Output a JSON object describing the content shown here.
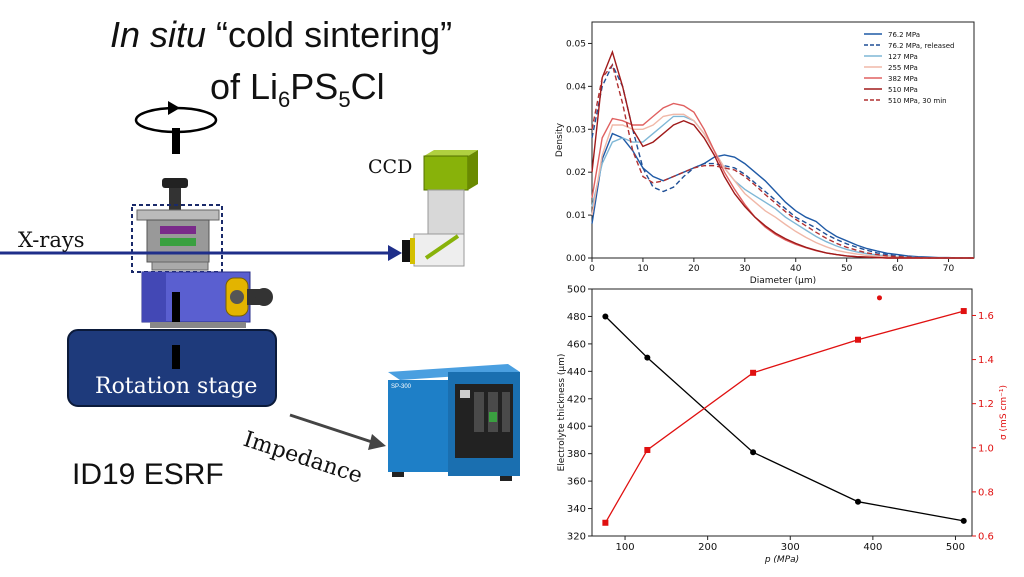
{
  "title": {
    "line1_italic": "In situ",
    "line1_rest": " “cold sintering”",
    "line2_prefix": "of Li",
    "line2_sub1": "6",
    "line2_mid": "PS",
    "line2_sub2": "5",
    "line2_suffix": "Cl"
  },
  "labels": {
    "xrays": "X-rays",
    "ccd": "CCD",
    "rotation_stage": "Rotation stage",
    "impedance": "Impedance",
    "facility": "ID19 ESRF",
    "device_brand": "SP-300"
  },
  "colors": {
    "beam": "#1f2f8a",
    "stage": "#1e3a7b",
    "ccd": "#88b20a",
    "cell": "#5a5fd0",
    "potentiostat": "#1e7fc7"
  },
  "chart_data": [
    {
      "type": "line",
      "ylabel": "Density",
      "xlabel": "Diameter (μm)",
      "xlim": [
        0,
        75
      ],
      "ylim": [
        0,
        0.055
      ],
      "xticks": [
        0,
        10,
        20,
        30,
        40,
        50,
        60,
        70
      ],
      "yticks": [
        0.0,
        0.01,
        0.02,
        0.03,
        0.04,
        0.05
      ],
      "legend_position": "top-right",
      "series": [
        {
          "name": "76.2 MPa",
          "color": "#1f5aa6",
          "dash": false,
          "x": [
            0,
            2,
            4,
            6,
            8,
            10,
            12,
            14,
            16,
            18,
            20,
            22,
            24,
            26,
            28,
            30,
            32,
            34,
            36,
            38,
            40,
            42,
            44,
            46,
            48,
            50,
            52,
            54,
            56,
            58,
            60,
            62,
            64,
            66,
            68,
            70,
            72,
            75
          ],
          "y": [
            0.008,
            0.023,
            0.029,
            0.028,
            0.025,
            0.021,
            0.019,
            0.018,
            0.019,
            0.02,
            0.021,
            0.022,
            0.0235,
            0.024,
            0.0235,
            0.022,
            0.02,
            0.018,
            0.0155,
            0.013,
            0.011,
            0.0095,
            0.0085,
            0.0065,
            0.005,
            0.004,
            0.003,
            0.0022,
            0.0016,
            0.0011,
            0.0008,
            0.0005,
            0.0003,
            0.0002,
            0.0001,
            0.0001,
            0.0,
            0.0
          ]
        },
        {
          "name": "76.2 MPa, released",
          "color": "#1f4f96",
          "dash": true,
          "x": [
            0,
            2,
            4,
            6,
            8,
            10,
            12,
            14,
            16,
            18,
            20,
            22,
            24,
            26,
            28,
            30,
            32,
            34,
            36,
            38,
            40,
            42,
            44,
            46,
            48,
            50,
            52,
            54,
            56,
            58,
            60,
            62,
            64,
            66,
            68,
            70,
            72,
            75
          ],
          "y": [
            0.028,
            0.04,
            0.045,
            0.04,
            0.03,
            0.021,
            0.0165,
            0.0155,
            0.0165,
            0.019,
            0.021,
            0.022,
            0.022,
            0.0215,
            0.021,
            0.0195,
            0.0175,
            0.0155,
            0.0135,
            0.0115,
            0.0095,
            0.0082,
            0.007,
            0.0055,
            0.0043,
            0.0033,
            0.0025,
            0.0018,
            0.0012,
            0.0008,
            0.0005,
            0.0003,
            0.0002,
            0.0001,
            0.0,
            0.0,
            0.0,
            0.0
          ]
        },
        {
          "name": "127 MPa",
          "color": "#7fb7d6",
          "dash": false,
          "x": [
            0,
            2,
            4,
            6,
            8,
            10,
            12,
            14,
            16,
            18,
            20,
            22,
            24,
            26,
            28,
            30,
            32,
            34,
            36,
            38,
            40,
            42,
            44,
            46,
            48,
            50,
            52,
            54,
            56,
            58,
            60,
            62,
            64,
            66,
            68,
            70,
            72,
            75
          ],
          "y": [
            0.012,
            0.022,
            0.027,
            0.028,
            0.027,
            0.027,
            0.029,
            0.031,
            0.033,
            0.033,
            0.032,
            0.029,
            0.025,
            0.021,
            0.018,
            0.016,
            0.0145,
            0.013,
            0.0115,
            0.0095,
            0.008,
            0.0065,
            0.005,
            0.0038,
            0.0028,
            0.002,
            0.0014,
            0.001,
            0.0007,
            0.0005,
            0.0003,
            0.0002,
            0.0001,
            0.0,
            0.0,
            0.0,
            0.0,
            0.0
          ]
        },
        {
          "name": "255 MPa",
          "color": "#f0b8a8",
          "dash": false,
          "x": [
            0,
            2,
            4,
            6,
            8,
            10,
            12,
            14,
            16,
            18,
            20,
            22,
            24,
            26,
            28,
            30,
            32,
            34,
            36,
            38,
            40,
            42,
            44,
            46,
            48,
            50,
            52,
            54,
            56,
            58,
            60,
            62,
            64,
            66,
            68,
            70,
            72,
            75
          ],
          "y": [
            0.01,
            0.024,
            0.031,
            0.031,
            0.03,
            0.03,
            0.031,
            0.033,
            0.0335,
            0.0335,
            0.032,
            0.029,
            0.025,
            0.021,
            0.018,
            0.015,
            0.013,
            0.011,
            0.0095,
            0.0078,
            0.0062,
            0.0048,
            0.0036,
            0.0026,
            0.0018,
            0.0013,
            0.0009,
            0.0006,
            0.0004,
            0.0003,
            0.0002,
            0.0001,
            0.0,
            0.0,
            0.0,
            0.0,
            0.0,
            0.0
          ]
        },
        {
          "name": "382 MPa",
          "color": "#e06060",
          "dash": false,
          "x": [
            0,
            2,
            4,
            6,
            8,
            10,
            12,
            14,
            16,
            18,
            20,
            22,
            24,
            26,
            28,
            30,
            32,
            34,
            36,
            38,
            40,
            42,
            44,
            46,
            48,
            50,
            52,
            54,
            56,
            58,
            60,
            62,
            64,
            66,
            68,
            70,
            72,
            75
          ],
          "y": [
            0.014,
            0.028,
            0.0325,
            0.032,
            0.031,
            0.031,
            0.033,
            0.035,
            0.036,
            0.0355,
            0.034,
            0.03,
            0.025,
            0.02,
            0.016,
            0.0125,
            0.0095,
            0.0072,
            0.0055,
            0.0042,
            0.0032,
            0.0024,
            0.0017,
            0.0012,
            0.0008,
            0.0005,
            0.0003,
            0.0002,
            0.0001,
            0.0,
            0.0,
            0.0,
            0.0,
            0.0,
            0.0,
            0.0,
            0.0,
            0.0
          ]
        },
        {
          "name": "510 MPa",
          "color": "#a01a1a",
          "dash": false,
          "x": [
            0,
            2,
            4,
            6,
            8,
            10,
            12,
            14,
            16,
            18,
            20,
            22,
            24,
            26,
            28,
            30,
            32,
            34,
            36,
            38,
            40,
            42,
            44,
            46,
            48,
            50,
            52,
            54,
            56,
            58,
            60,
            62,
            64,
            66,
            68,
            70,
            72,
            75
          ],
          "y": [
            0.02,
            0.042,
            0.048,
            0.04,
            0.03,
            0.026,
            0.027,
            0.029,
            0.031,
            0.032,
            0.031,
            0.028,
            0.024,
            0.019,
            0.015,
            0.012,
            0.0095,
            0.0075,
            0.0058,
            0.0045,
            0.0034,
            0.0025,
            0.0018,
            0.0012,
            0.0008,
            0.0005,
            0.0003,
            0.0002,
            0.0001,
            0.0,
            0.0,
            0.0,
            0.0,
            0.0,
            0.0,
            0.0,
            0.0,
            0.0
          ]
        },
        {
          "name": "510 MPa, 30 min",
          "color": "#b03030",
          "dash": true,
          "x": [
            0,
            2,
            4,
            6,
            8,
            10,
            12,
            14,
            16,
            18,
            20,
            22,
            24,
            26,
            28,
            30,
            32,
            34,
            36,
            38,
            40,
            42,
            44,
            46,
            48,
            50,
            52,
            54,
            56,
            58,
            60,
            62,
            64,
            66,
            68,
            70,
            72,
            75
          ],
          "y": [
            0.03,
            0.042,
            0.045,
            0.036,
            0.025,
            0.019,
            0.0175,
            0.018,
            0.019,
            0.02,
            0.021,
            0.0215,
            0.0215,
            0.021,
            0.0205,
            0.019,
            0.017,
            0.0148,
            0.0128,
            0.0108,
            0.009,
            0.0075,
            0.006,
            0.0046,
            0.0034,
            0.0025,
            0.0018,
            0.0012,
            0.0008,
            0.0005,
            0.0003,
            0.0002,
            0.0001,
            0.0,
            0.0,
            0.0,
            0.0,
            0.0
          ]
        }
      ]
    },
    {
      "type": "line",
      "xlabel": "p (MPa)",
      "ylabel": "Electrolyte thickness (μm)",
      "y2label": "σ (mS cm⁻¹)",
      "xlim": [
        60,
        520
      ],
      "ylim": [
        320,
        500
      ],
      "y2lim": [
        0.6,
        1.72
      ],
      "xticks": [
        100,
        200,
        300,
        400,
        500
      ],
      "yticks": [
        320,
        340,
        360,
        380,
        400,
        420,
        440,
        460,
        480,
        500
      ],
      "y2ticks": [
        0.6,
        0.8,
        1.0,
        1.2,
        1.4,
        1.6
      ],
      "series": [
        {
          "color": "#000000",
          "marker": "circle",
          "axis": "left",
          "x": [
            76.2,
            127,
            255,
            382,
            510
          ],
          "y": [
            480,
            450,
            381,
            345,
            331
          ]
        },
        {
          "color": "#e01010",
          "marker": "square",
          "axis": "right",
          "x": [
            76.2,
            127,
            255,
            382,
            510
          ],
          "y": [
            0.66,
            0.99,
            1.34,
            1.49,
            1.62
          ]
        }
      ],
      "extra_points": [
        {
          "x": 408,
          "y": 1.68,
          "axis": "right",
          "color": "#e01010"
        }
      ]
    }
  ]
}
